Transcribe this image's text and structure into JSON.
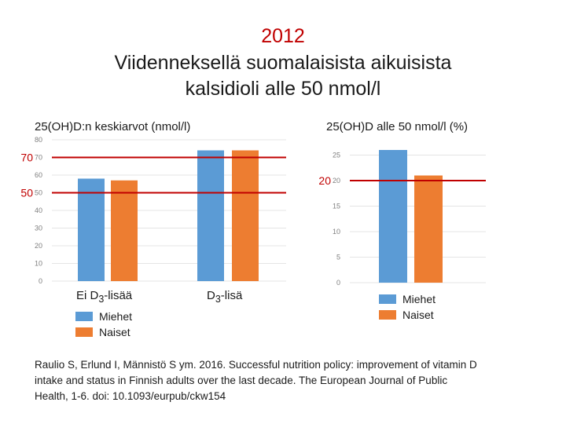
{
  "title": {
    "year": "2012",
    "line1": "Viidenneksellä suomalaisista aikuisista",
    "line2": "kalsidioli alle 50 nmol/l"
  },
  "colors": {
    "miehet": "#5b9bd5",
    "naiset": "#ed7d31",
    "reference": "#c00000"
  },
  "chart_data": [
    {
      "type": "bar",
      "title": "25(OH)D:n keskiarvot (nmol/l)",
      "categories": [
        {
          "prefix": "Ei D",
          "sub": "3",
          "suffix": "-lisää"
        },
        {
          "prefix": "D",
          "sub": "3",
          "suffix": "-lisä"
        }
      ],
      "series": [
        {
          "name": "Miehet",
          "values": [
            58,
            74
          ]
        },
        {
          "name": "Naiset",
          "values": [
            57,
            74
          ]
        }
      ],
      "ylim": [
        0,
        80
      ],
      "yticks": [
        0,
        10,
        20,
        30,
        40,
        50,
        60,
        70,
        80
      ],
      "reference_lines": [
        {
          "value": 70,
          "label": "70"
        },
        {
          "value": 50,
          "label": "50"
        }
      ],
      "legend": [
        "Miehet",
        "Naiset"
      ]
    },
    {
      "type": "bar",
      "title": "25(OH)D alle 50 nmol/l (%)",
      "categories": [
        ""
      ],
      "series": [
        {
          "name": "Miehet",
          "values": [
            26
          ]
        },
        {
          "name": "Naiset",
          "values": [
            21
          ]
        }
      ],
      "ylim": [
        0,
        28
      ],
      "yticks": [
        0,
        5,
        10,
        15,
        20,
        25
      ],
      "reference_lines": [
        {
          "value": 20,
          "label": "20"
        }
      ],
      "legend": [
        "Miehet",
        "Naiset"
      ]
    }
  ],
  "citation": {
    "line1": "Raulio S, Erlund I, Männistö S ym. 2016. Successful nutrition policy: improvement of vitamin D",
    "line2": "intake and status in Finnish adults over the last decade. The European Journal of Public",
    "line3": "Health, 1-6. doi: 10.1093/eurpub/ckw154"
  }
}
